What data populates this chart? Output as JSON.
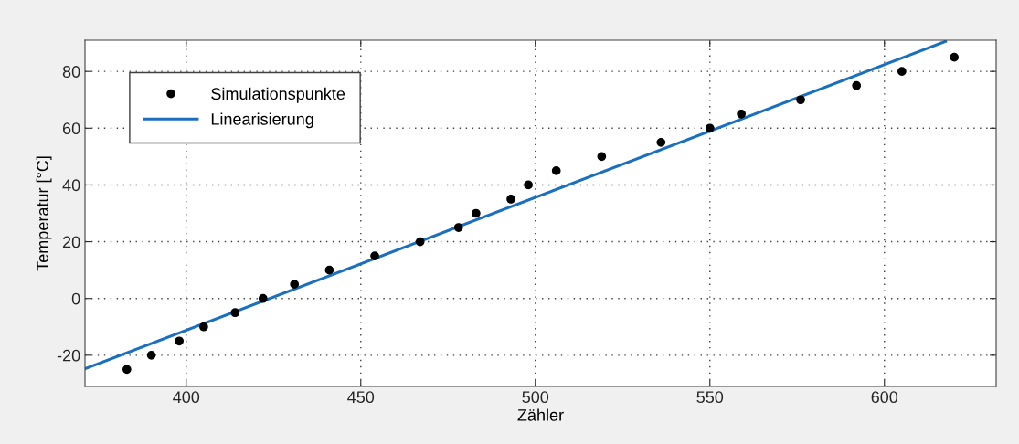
{
  "chart_data": {
    "type": "scatter",
    "xlabel": "Zähler",
    "ylabel": "Temperatur [°C]",
    "xlim": [
      371,
      632
    ],
    "ylim": [
      -31,
      91
    ],
    "xticks": [
      400,
      450,
      500,
      550,
      600
    ],
    "yticks": [
      -20,
      0,
      20,
      40,
      60,
      80
    ],
    "grid": true,
    "legend": "top left",
    "series": [
      {
        "name": "Simulationspunkte",
        "marker": "circle",
        "color": "#000000",
        "x": [
          383,
          390,
          398,
          405,
          414,
          422,
          431,
          441,
          454,
          467,
          478,
          483,
          493,
          498,
          506,
          519,
          536,
          550,
          559,
          576,
          592,
          605,
          620
        ],
        "values": [
          -25,
          -20,
          -15,
          -10,
          -5,
          0,
          5,
          10,
          15,
          20,
          25,
          30,
          35,
          40,
          45,
          50,
          55,
          60,
          65,
          70,
          75,
          80,
          85
        ]
      },
      {
        "name": "Linearisierung",
        "type": "line",
        "line_style": "solid",
        "color": "#1a6fbf",
        "x": [
          371,
          617.5
        ],
        "values": [
          -24.8,
          90.6
        ]
      }
    ]
  }
}
